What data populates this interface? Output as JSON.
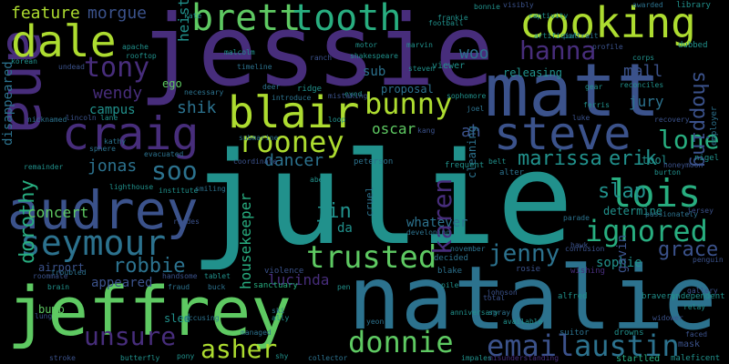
{
  "palette": {
    "background": "#000000",
    "dark_purple": "#440154",
    "purple": "#472d7b",
    "indigo": "#3b528b",
    "blue": "#2c728e",
    "teal": "#21918c",
    "green_teal": "#28ae80",
    "green": "#5ec962",
    "yellow_green": "#addc30",
    "yellow": "#fde725"
  },
  "words": [
    {
      "text": "julie",
      "color": "#21918c"
    },
    {
      "text": "natalie",
      "color": "#2c728e"
    },
    {
      "text": "jessie",
      "color": "#472d7b"
    },
    {
      "text": "matt",
      "color": "#3b528b"
    },
    {
      "text": "jeffrey",
      "color": "#5ec962"
    },
    {
      "text": "audrey",
      "color": "#3b528b"
    },
    {
      "text": "ana",
      "color": "#472d7b"
    },
    {
      "text": "cooking",
      "color": "#addc30"
    },
    {
      "text": "steve",
      "color": "#3b528b"
    },
    {
      "text": "craig",
      "color": "#472d7b"
    },
    {
      "text": "blair",
      "color": "#addc30"
    },
    {
      "text": "dale",
      "color": "#addc30"
    },
    {
      "text": "brett",
      "color": "#5ec962"
    },
    {
      "text": "tooth",
      "color": "#28ae80"
    },
    {
      "text": "seymour",
      "color": "#2c728e"
    },
    {
      "text": "lois",
      "color": "#28ae80"
    },
    {
      "text": "rooney",
      "color": "#addc30"
    },
    {
      "text": "bunny",
      "color": "#addc30"
    },
    {
      "text": "ignored",
      "color": "#28ae80"
    },
    {
      "text": "email",
      "color": "#3b528b"
    },
    {
      "text": "austin",
      "color": "#2c728e"
    },
    {
      "text": "trusted",
      "color": "#5ec962"
    },
    {
      "text": "donnie",
      "color": "#5ec962"
    },
    {
      "text": "hanna",
      "color": "#472d7b"
    },
    {
      "text": "tony",
      "color": "#472d7b"
    },
    {
      "text": "karen",
      "color": "#472d7b"
    },
    {
      "text": "lone",
      "color": "#28ae80"
    },
    {
      "text": "unsure",
      "color": "#472d7b"
    },
    {
      "text": "asher",
      "color": "#addc30"
    },
    {
      "text": "soo",
      "color": "#2c728e"
    },
    {
      "text": "jenny",
      "color": "#2c728e"
    },
    {
      "text": "marissa",
      "color": "#21918c"
    },
    {
      "text": "erik",
      "color": "#21918c"
    },
    {
      "text": "shopping",
      "color": "#3b528b"
    },
    {
      "text": "slap",
      "color": "#21918c"
    },
    {
      "text": "robbie",
      "color": "#2c728e"
    },
    {
      "text": "grace",
      "color": "#3b528b"
    },
    {
      "text": "dorothy",
      "color": "#28ae80"
    },
    {
      "text": "jin",
      "color": "#21918c"
    },
    {
      "text": "feature",
      "color": "#addc30"
    },
    {
      "text": "morgue",
      "color": "#3b528b"
    },
    {
      "text": "woo",
      "color": "#2c728e"
    },
    {
      "text": "mall",
      "color": "#3b528b"
    },
    {
      "text": "wendy",
      "color": "#472d7b"
    },
    {
      "text": "shik",
      "color": "#2c728e"
    },
    {
      "text": "heist",
      "color": "#21918c"
    },
    {
      "text": "ah",
      "color": "#3b528b"
    },
    {
      "text": "jonas",
      "color": "#2c728e"
    },
    {
      "text": "dancer",
      "color": "#2c728e"
    },
    {
      "text": "concert",
      "color": "#5ec962"
    },
    {
      "text": "housekeeper",
      "color": "#28ae80"
    },
    {
      "text": "lucinda",
      "color": "#472d7b"
    },
    {
      "text": "sophie",
      "color": "#21918c"
    },
    {
      "text": "jury",
      "color": "#2c728e"
    },
    {
      "text": "oscar",
      "color": "#5ec962"
    },
    {
      "text": "disappeared",
      "color": "#2c728e"
    },
    {
      "text": "da",
      "color": "#21918c"
    },
    {
      "text": "whatever",
      "color": "#2c728e"
    },
    {
      "text": "sub",
      "color": "#2c728e"
    },
    {
      "text": "proposal",
      "color": "#2c728e"
    },
    {
      "text": "gavin",
      "color": "#3b528b"
    },
    {
      "text": "determine",
      "color": "#21918c"
    },
    {
      "text": "releasing",
      "color": "#21918c"
    },
    {
      "text": "tool",
      "color": "#21918c"
    },
    {
      "text": "cleaning",
      "color": "#2c728e"
    },
    {
      "text": "campus",
      "color": "#21918c"
    },
    {
      "text": "ego",
      "color": "#5ec962"
    },
    {
      "text": "appeared",
      "color": "#3b528b"
    },
    {
      "text": "airport",
      "color": "#3b528b"
    },
    {
      "text": "bump",
      "color": "#5ec962"
    },
    {
      "text": "sled",
      "color": "#21918c"
    },
    {
      "text": "mask",
      "color": "#3b528b"
    },
    {
      "text": "cruel",
      "color": "#2c728e"
    },
    {
      "text": "startled",
      "color": "#28ae80"
    },
    {
      "text": "frequent",
      "color": "#21918c"
    },
    {
      "text": "alter",
      "color": "#2c728e"
    },
    {
      "text": "viewer",
      "color": "#21918c"
    },
    {
      "text": "rosie",
      "color": "#3b528b"
    },
    {
      "text": "sanctuary",
      "color": "#28ae80"
    },
    {
      "text": "violence",
      "color": "#3b528b"
    },
    {
      "text": "collector",
      "color": "#2c728e"
    },
    {
      "text": "misunderstanding",
      "color": "#472d7b"
    },
    {
      "text": "wishing",
      "color": "#472d7b"
    },
    {
      "text": "nigel",
      "color": "#21918c"
    },
    {
      "text": "maleficent",
      "color": "#21918c"
    },
    {
      "text": "butterfly",
      "color": "#21918c"
    },
    {
      "text": "handsome",
      "color": "#3b528b"
    },
    {
      "text": "rhodes",
      "color": "#3b528b"
    },
    {
      "text": "lighthouse",
      "color": "#21918c"
    },
    {
      "text": "evacuated",
      "color": "#2c728e"
    },
    {
      "text": "institute",
      "color": "#21918c"
    },
    {
      "text": "smiling",
      "color": "#2c728e"
    },
    {
      "text": "motor",
      "color": "#21918c"
    },
    {
      "text": "introduce",
      "color": "#2c728e"
    },
    {
      "text": "ridge",
      "color": "#21918c"
    },
    {
      "text": "eyed",
      "color": "#21918c"
    },
    {
      "text": "loop",
      "color": "#21918c"
    },
    {
      "text": "kang",
      "color": "#3b528b"
    },
    {
      "text": "joel",
      "color": "#2c728e"
    },
    {
      "text": "steven",
      "color": "#21918c"
    },
    {
      "text": "marvin",
      "color": "#21918c"
    },
    {
      "text": "portrait",
      "color": "#2c728e"
    },
    {
      "text": "artificial",
      "color": "#21918c"
    },
    {
      "text": "awarded",
      "color": "#2c728e"
    },
    {
      "text": "captivity",
      "color": "#21918c"
    },
    {
      "text": "library",
      "color": "#21918c"
    },
    {
      "text": "dubbed",
      "color": "#21918c"
    },
    {
      "text": "corps",
      "color": "#21918c"
    },
    {
      "text": "gear",
      "color": "#21918c"
    },
    {
      "text": "profile",
      "color": "#3b528b"
    },
    {
      "text": "reconciles",
      "color": "#21918c"
    },
    {
      "text": "recovery",
      "color": "#3b528b"
    },
    {
      "text": "employer",
      "color": "#2c728e"
    },
    {
      "text": "burton",
      "color": "#21918c"
    },
    {
      "text": "honeymoon",
      "color": "#3b528b"
    },
    {
      "text": "luke",
      "color": "#3b528b"
    },
    {
      "text": "ferris",
      "color": "#21918c"
    },
    {
      "text": "parade",
      "color": "#2c728e"
    },
    {
      "text": "hawk",
      "color": "#3b528b"
    },
    {
      "text": "confusion",
      "color": "#3b528b"
    },
    {
      "text": "bravery",
      "color": "#21918c"
    },
    {
      "text": "independent",
      "color": "#21918c"
    },
    {
      "text": "relay",
      "color": "#21918c"
    },
    {
      "text": "faced",
      "color": "#3b528b"
    },
    {
      "text": "suitor",
      "color": "#2c728e"
    },
    {
      "text": "drowns",
      "color": "#21918c"
    },
    {
      "text": "alfred",
      "color": "#21918c"
    },
    {
      "text": "johnson",
      "color": "#3b528b"
    },
    {
      "text": "total",
      "color": "#3b528b"
    },
    {
      "text": "blake",
      "color": "#2c728e"
    },
    {
      "text": "decided",
      "color": "#2c728e"
    },
    {
      "text": "november",
      "color": "#2c728e"
    },
    {
      "text": "developing",
      "color": "#2c728e"
    },
    {
      "text": "peterson",
      "color": "#2c728e"
    },
    {
      "text": "coordinate",
      "color": "#3b528b"
    },
    {
      "text": "submarine",
      "color": "#2c728e"
    },
    {
      "text": "necessary",
      "color": "#2c728e"
    },
    {
      "text": "timeline",
      "color": "#2c728e"
    },
    {
      "text": "shakespeare",
      "color": "#21918c"
    },
    {
      "text": "releasing",
      "color": "#21918c"
    },
    {
      "text": "football",
      "color": "#21918c"
    },
    {
      "text": "apache",
      "color": "#21918c"
    },
    {
      "text": "rooftop",
      "color": "#21918c"
    },
    {
      "text": "korean",
      "color": "#21918c"
    },
    {
      "text": "nicknamed",
      "color": "#2c728e"
    },
    {
      "text": "remainder",
      "color": "#21918c"
    },
    {
      "text": "roommate",
      "color": "#3b528b"
    },
    {
      "text": "troubled",
      "color": "#2c728e"
    },
    {
      "text": "lincoln",
      "color": "#3b528b"
    },
    {
      "text": "lane",
      "color": "#21918c"
    },
    {
      "text": "kathy",
      "color": "#2c728e"
    },
    {
      "text": "sphere",
      "color": "#2c728e"
    },
    {
      "text": "fraud",
      "color": "#2c728e"
    },
    {
      "text": "buck",
      "color": "#2c728e"
    },
    {
      "text": "tablet",
      "color": "#21918c"
    },
    {
      "text": "managed",
      "color": "#2c728e"
    },
    {
      "text": "stroke",
      "color": "#3b528b"
    },
    {
      "text": "brain",
      "color": "#21918c"
    },
    {
      "text": "lung",
      "color": "#3b528b"
    },
    {
      "text": "pony",
      "color": "#21918c"
    },
    {
      "text": "shy",
      "color": "#21918c"
    },
    {
      "text": "pen",
      "color": "#21918c"
    },
    {
      "text": "yeon",
      "color": "#2c728e"
    },
    {
      "text": "impales",
      "color": "#21918c"
    },
    {
      "text": "spray",
      "color": "#2c728e"
    },
    {
      "text": "sophomore",
      "color": "#21918c"
    },
    {
      "text": "passionately",
      "color": "#2c728e"
    },
    {
      "text": "mistaking",
      "color": "#3b528b"
    },
    {
      "text": "frankie",
      "color": "#21918c"
    },
    {
      "text": "bonnie",
      "color": "#21918c"
    },
    {
      "text": "visibly",
      "color": "#3b528b"
    },
    {
      "text": "malcolm",
      "color": "#21918c"
    },
    {
      "text": "kate",
      "color": "#21918c"
    },
    {
      "text": "undead",
      "color": "#3b528b"
    },
    {
      "text": "jersey",
      "color": "#3b528b"
    },
    {
      "text": "gallery",
      "color": "#3b528b"
    },
    {
      "text": "pile",
      "color": "#21918c"
    },
    {
      "text": "accusing",
      "color": "#2c728e"
    },
    {
      "text": "belt",
      "color": "#21918c"
    },
    {
      "text": "abe",
      "color": "#21918c"
    },
    {
      "text": "ally",
      "color": "#21918c"
    },
    {
      "text": "ski",
      "color": "#2c728e"
    },
    {
      "text": "ranch",
      "color": "#3b528b"
    },
    {
      "text": "deer",
      "color": "#2c728e"
    },
    {
      "text": "available",
      "color": "#21918c"
    },
    {
      "text": "anniversary",
      "color": "#21918c"
    },
    {
      "text": "widower",
      "color": "#3b528b"
    },
    {
      "text": "penguin",
      "color": "#3b528b"
    }
  ]
}
